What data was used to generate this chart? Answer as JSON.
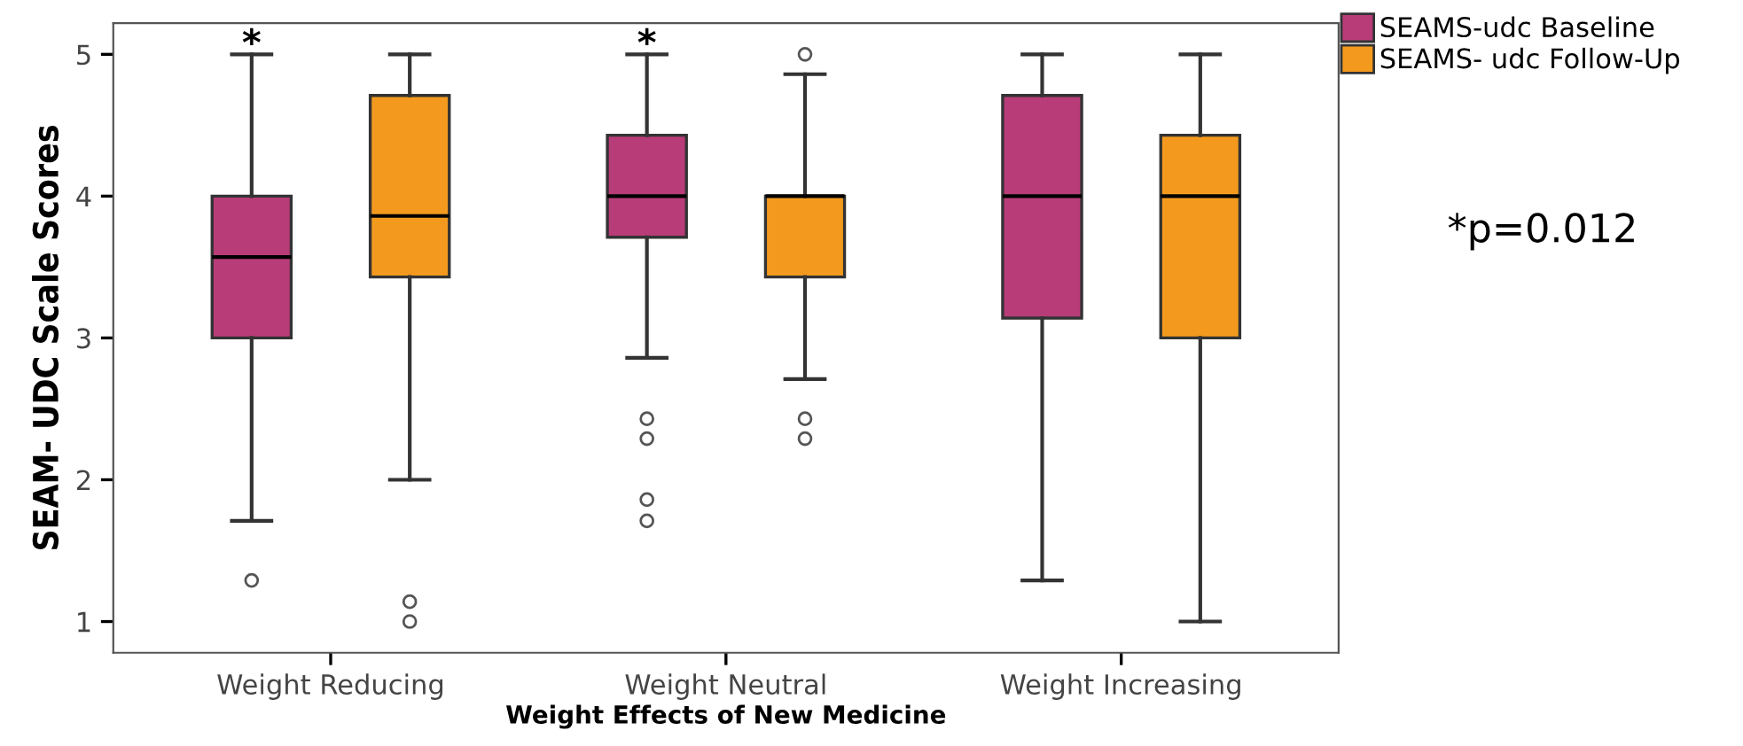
{
  "chart_data": {
    "type": "box",
    "xlabel": "Weight Effects of New Medicine",
    "ylabel": "SEAM- UDC Scale Scores",
    "categories": [
      "Weight Reducing",
      "Weight Neutral",
      "Weight Increasing"
    ],
    "series": [
      {
        "name": "SEAMS-udc Baseline",
        "color": "#b83c78",
        "boxes": [
          {
            "low": 1.71,
            "q1": 3.0,
            "median": 3.57,
            "q3": 4.0,
            "high": 5.0,
            "outliers": [
              1.29
            ]
          },
          {
            "low": 2.86,
            "q1": 3.71,
            "median": 4.0,
            "q3": 4.43,
            "high": 5.0,
            "outliers": [
              2.43,
              2.29,
              1.86,
              1.71
            ]
          },
          {
            "low": 1.29,
            "q1": 3.14,
            "median": 4.0,
            "q3": 4.71,
            "high": 5.0,
            "outliers": null
          }
        ]
      },
      {
        "name": "SEAMS- udc Follow-Up",
        "color": "#f39a1e",
        "boxes": [
          {
            "low": 2.0,
            "q1": 3.43,
            "median": 3.86,
            "q3": 4.71,
            "high": 5.0,
            "outliers": [
              1.14,
              1.0
            ]
          },
          {
            "low": 2.71,
            "q1": 3.43,
            "median": 4.0,
            "q3": 4.0,
            "high": 4.86,
            "outliers": [
              5.0,
              2.43,
              2.29
            ]
          },
          {
            "low": 1.0,
            "q1": 3.0,
            "median": 4.0,
            "q3": 4.43,
            "high": 5.0
          }
        ]
      }
    ],
    "ylim": [
      0.78,
      5.22
    ],
    "yticks": [
      1,
      2,
      3,
      4,
      5
    ],
    "grid": false,
    "legend": "top right",
    "annotations": [
      "*",
      "*",
      "*p=0.012"
    ]
  }
}
